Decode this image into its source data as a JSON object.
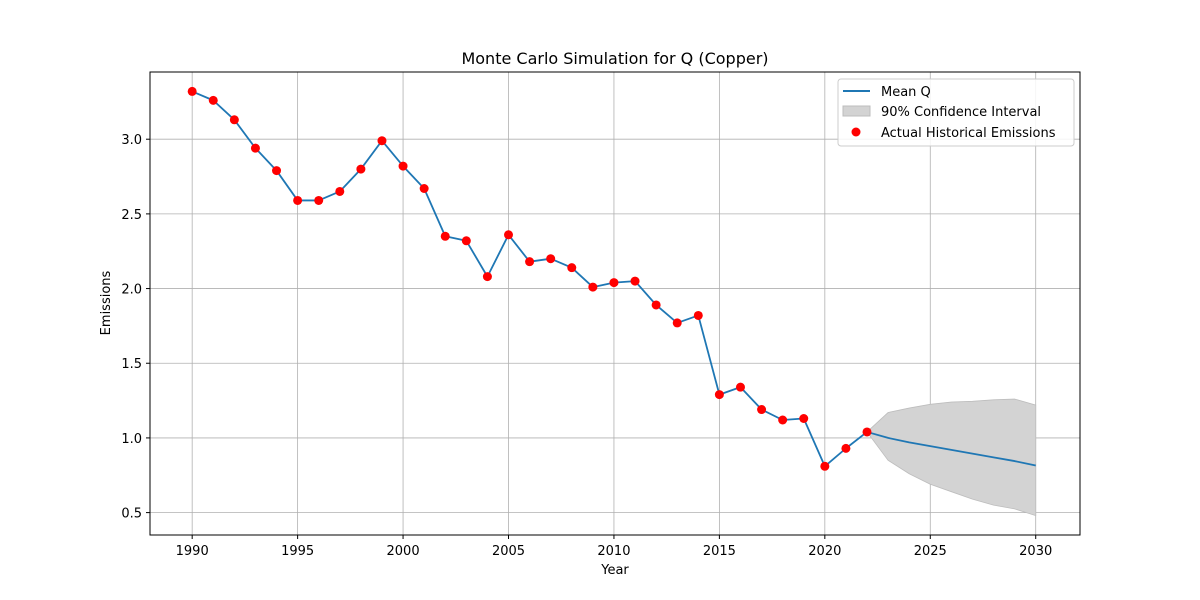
{
  "chart_data": {
    "type": "line",
    "title": "Monte Carlo Simulation for Q (Copper)",
    "xlabel": "Year",
    "ylabel": "Emissions",
    "xlim": [
      1988,
      2032.1
    ],
    "ylim": [
      0.35,
      3.45
    ],
    "xticks": [
      1990,
      1995,
      2000,
      2005,
      2010,
      2015,
      2020,
      2025,
      2030
    ],
    "yticks": [
      0.5,
      1.0,
      1.5,
      2.0,
      2.5,
      3.0
    ],
    "ytick_labels": [
      "0.5",
      "1.0",
      "1.5",
      "2.0",
      "2.5",
      "3.0"
    ],
    "grid": true,
    "legend_position": "top-right",
    "legend": {
      "mean": "Mean Q",
      "ci": "90% Confidence Interval",
      "actual": "Actual Historical Emissions"
    },
    "colors": {
      "mean_line": "#1f77b4",
      "ci_fill": "#d3d3d3",
      "ci_edge": "#bdbdbd",
      "actual_points": "#ff0000",
      "grid": "#b0b0b0"
    },
    "historical": {
      "x": [
        1990,
        1991,
        1992,
        1993,
        1994,
        1995,
        1996,
        1997,
        1998,
        1999,
        2000,
        2001,
        2002,
        2003,
        2004,
        2005,
        2006,
        2007,
        2008,
        2009,
        2010,
        2011,
        2012,
        2013,
        2014,
        2015,
        2016,
        2017,
        2018,
        2019,
        2020,
        2021,
        2022
      ],
      "y": [
        3.32,
        3.26,
        3.13,
        2.94,
        2.79,
        2.59,
        2.59,
        2.65,
        2.8,
        2.99,
        2.82,
        2.67,
        2.35,
        2.32,
        2.08,
        2.36,
        2.18,
        2.2,
        2.14,
        2.01,
        2.04,
        2.05,
        1.89,
        1.77,
        1.82,
        1.29,
        1.34,
        1.19,
        1.12,
        1.13,
        0.81,
        0.93,
        1.04
      ]
    },
    "forecast": {
      "x": [
        2022,
        2023,
        2024,
        2025,
        2026,
        2027,
        2028,
        2029,
        2030
      ],
      "mean": [
        1.04,
        1.0,
        0.97,
        0.945,
        0.92,
        0.895,
        0.87,
        0.845,
        0.815
      ],
      "lower": [
        1.04,
        0.85,
        0.76,
        0.69,
        0.64,
        0.59,
        0.55,
        0.525,
        0.48
      ],
      "upper": [
        1.04,
        1.17,
        1.2,
        1.225,
        1.24,
        1.245,
        1.255,
        1.26,
        1.22
      ]
    }
  }
}
